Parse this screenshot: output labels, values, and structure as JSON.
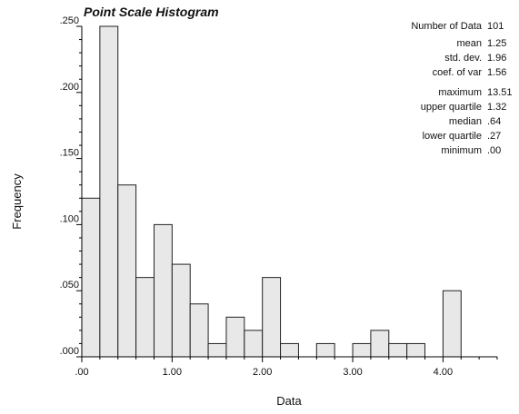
{
  "chart_data": {
    "type": "bar",
    "title": "Point Scale Histogram",
    "xlabel": "Data",
    "ylabel": "Frequency",
    "bin_width": 0.2,
    "xlim": [
      0,
      4.6
    ],
    "ylim": [
      0,
      0.25
    ],
    "x_ticks": [
      0,
      1,
      2,
      3,
      4
    ],
    "x_tick_labels": [
      ".00",
      "1.00",
      "2.00",
      "3.00",
      "4.00"
    ],
    "y_ticks": [
      0,
      0.05,
      0.1,
      0.15,
      0.2,
      0.25
    ],
    "y_tick_labels": [
      ".000",
      ".050",
      ".100",
      ".150",
      ".200",
      ".250"
    ],
    "bins_start": [
      0.0,
      0.2,
      0.4,
      0.6,
      0.8,
      1.0,
      1.2,
      1.4,
      1.6,
      1.8,
      2.0,
      2.2,
      2.4,
      2.6,
      2.8,
      3.0,
      3.2,
      3.4,
      3.6,
      3.8,
      4.0,
      4.2
    ],
    "frequencies": [
      0.12,
      0.25,
      0.13,
      0.06,
      0.1,
      0.07,
      0.04,
      0.01,
      0.03,
      0.02,
      0.06,
      0.01,
      0.0,
      0.01,
      0.0,
      0.01,
      0.02,
      0.01,
      0.01,
      0.0,
      0.05,
      0.0
    ],
    "grid": false,
    "statistics": [
      {
        "label": "Number of Data",
        "value": "101"
      },
      {
        "label": "mean",
        "value": "1.25"
      },
      {
        "label": "std. dev.",
        "value": "1.96"
      },
      {
        "label": "coef. of var",
        "value": "1.56"
      },
      {
        "label": "maximum",
        "value": "13.51"
      },
      {
        "label": "upper quartile",
        "value": "1.32"
      },
      {
        "label": "median",
        "value": ".64"
      },
      {
        "label": "lower quartile",
        "value": ".27"
      },
      {
        "label": "minimum",
        "value": ".00"
      }
    ]
  }
}
